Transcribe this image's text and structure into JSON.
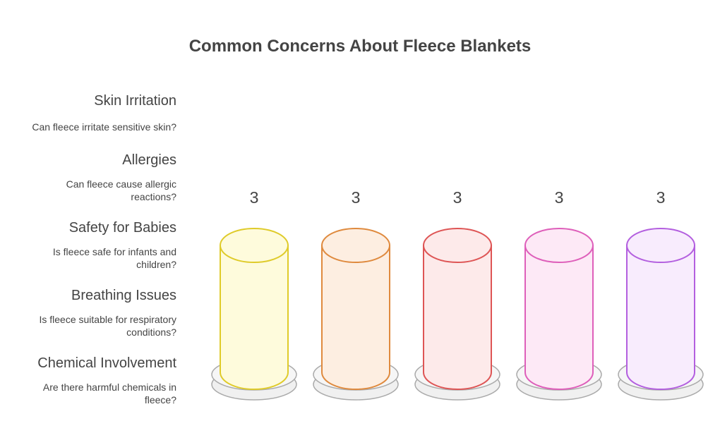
{
  "title": "Common Concerns About Fleece Blankets",
  "concerns": [
    {
      "heading": "Skin Irritation",
      "question": "Can fleece irritate sensitive skin?",
      "value": 3
    },
    {
      "heading": "Allergies",
      "question": "Can fleece cause allergic reactions?",
      "value": 3
    },
    {
      "heading": "Safety for Babies",
      "question": "Is fleece safe for infants and children?",
      "value": 3
    },
    {
      "heading": "Breathing Issues",
      "question": "Is fleece suitable for respiratory conditions?",
      "value": 3
    },
    {
      "heading": "Chemical Involvement",
      "question": "Are there harmful chemicals in fleece?",
      "value": 3
    }
  ]
}
